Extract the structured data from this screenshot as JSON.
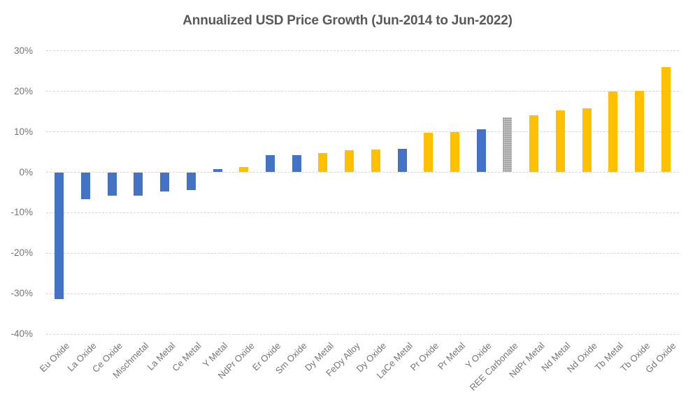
{
  "title": "Annualized USD Price Growth (Jun-2014 to Jun-2022)",
  "colors": {
    "bar_blue": "#4472C4",
    "bar_gold": "#FFC000",
    "bar_gray_pattern_base": "#C6C6C6",
    "bar_gray_pattern_dot": "#8A8A8A",
    "gridline": "#D6D6D6",
    "title_text": "#595959",
    "axis_text": "#757575",
    "background": "#FFFFFF"
  },
  "chart_data": {
    "type": "bar",
    "title": "Annualized USD Price Growth (Jun-2014 to Jun-2022)",
    "xlabel": "",
    "ylabel": "",
    "legend": "none",
    "grid": "horizontal-dashed",
    "x_label_rotation_deg": 45,
    "ylim": [
      -40,
      30
    ],
    "ytick_labels": [
      "30%",
      "20%",
      "10%",
      "0%",
      "-10%",
      "-20%",
      "-30%",
      "-40%"
    ],
    "ytick_values": [
      30,
      20,
      10,
      0,
      -10,
      -20,
      -30,
      -40
    ],
    "categories": [
      "Eu Oxide",
      "La Oxide",
      "Ce Oxide",
      "Mischmetal",
      "La Metal",
      "Ce Metal",
      "Y Metal",
      "NdPr Oxide",
      "Er Oxide",
      "Sm Oxide",
      "Dy Metal",
      "FeDy Alloy",
      "Dy Oxide",
      "LaCe Metal",
      "Pr Oxide",
      "Pr Metal",
      "Y Oxide",
      "REE Carbonate",
      "NdPr Metal",
      "Nd Metal",
      "Nd Oxide",
      "Tb Metal",
      "Tb Oxide",
      "Gd Oxide"
    ],
    "values": [
      -31.3,
      -6.6,
      -5.8,
      -5.7,
      -4.8,
      -4.4,
      0.8,
      1.3,
      4.2,
      4.2,
      4.7,
      5.5,
      5.6,
      5.7,
      9.8,
      10.0,
      10.6,
      13.6,
      14.1,
      15.2,
      15.8,
      19.9,
      20.2,
      26.0
    ],
    "bar_colors": [
      "blue",
      "blue",
      "blue",
      "blue",
      "blue",
      "blue",
      "blue",
      "gold",
      "blue",
      "blue",
      "gold",
      "gold",
      "gold",
      "blue",
      "gold",
      "gold",
      "blue",
      "gray",
      "gold",
      "gold",
      "gold",
      "gold",
      "gold",
      "gold"
    ]
  }
}
